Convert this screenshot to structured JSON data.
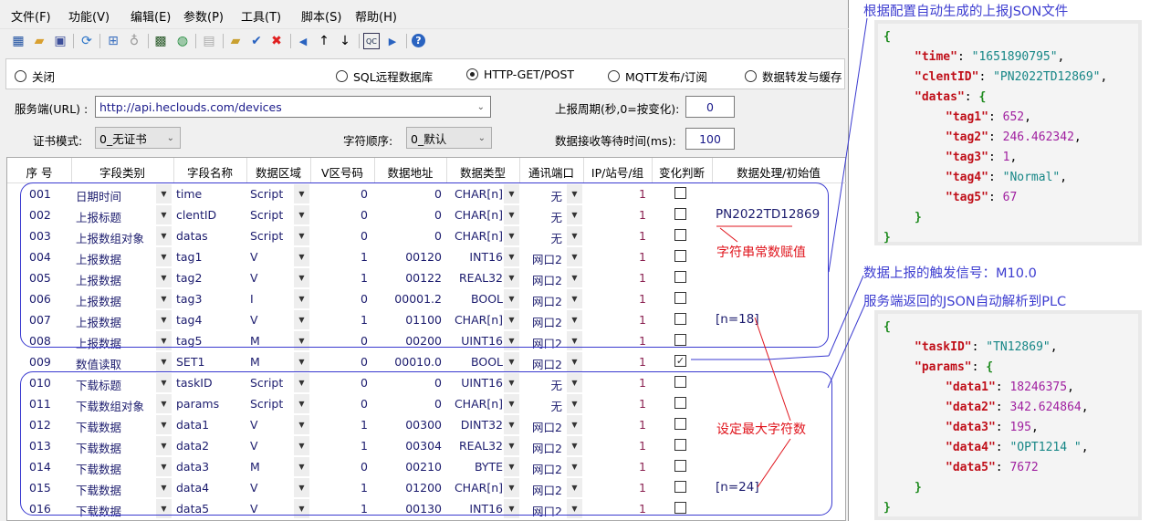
{
  "menu": [
    "文件(F)",
    "功能(V)",
    "编辑(E)",
    "参数(P)",
    "工具(T)",
    "脚本(S)",
    "帮助(H)"
  ],
  "toolbar_icons": [
    "tree-icon",
    "open-folder-icon",
    "save-icon",
    "refresh-icon",
    "network-icon",
    "plug-icon",
    "monitor-icon",
    "globe-device-icon",
    "table-icon",
    "new-folder-icon",
    "check-icon",
    "delete-icon",
    "left-arrow-icon",
    "up-arrow-icon",
    "down-arrow-icon",
    "qc-icon",
    "right-arrow-icon",
    "help-icon"
  ],
  "modes": {
    "off": "关闭",
    "sql": "SQL远程数据库",
    "http": "HTTP-GET/POST",
    "mqtt": "MQTT发布/订阅",
    "forward": "数据转发与缓存",
    "selected": "http"
  },
  "settings": {
    "url_label": "服务端(URL) :",
    "url": "http://api.heclouds.com/devices",
    "period_label": "上报周期(秒,0=按变化):",
    "period": "0",
    "cert_label": "证书模式:",
    "cert": "0_无证书",
    "order_label": "字符顺序:",
    "order": "0_默认",
    "wait_label": "数据接收等待时间(ms):",
    "wait": "100"
  },
  "columns": [
    "序 号",
    "字段类别",
    "字段名称",
    "数据区域",
    "V区号码",
    "数据地址",
    "数据类型",
    "通讯端口",
    "IP/站号/组",
    "变化判断",
    "数据处理/初始值"
  ],
  "rows": [
    {
      "no": "001",
      "cat": "日期时间",
      "name": "time",
      "area": "Script",
      "v": "0",
      "addr": "0",
      "type": "CHAR[n]",
      "port": "无",
      "ip": "1",
      "chg": false,
      "proc": ""
    },
    {
      "no": "002",
      "cat": "上报标题",
      "name": "clentID",
      "area": "Script",
      "v": "0",
      "addr": "0",
      "type": "CHAR[n]",
      "port": "无",
      "ip": "1",
      "chg": false,
      "proc": "PN2022TD12869"
    },
    {
      "no": "003",
      "cat": "上报数组对象",
      "name": "datas",
      "area": "Script",
      "v": "0",
      "addr": "0",
      "type": "CHAR[n]",
      "port": "无",
      "ip": "1",
      "chg": false,
      "proc": ""
    },
    {
      "no": "004",
      "cat": "上报数据",
      "name": "tag1",
      "area": "V",
      "v": "1",
      "addr": "00120",
      "type": "INT16",
      "port": "网口2",
      "ip": "1",
      "chg": false,
      "proc": ""
    },
    {
      "no": "005",
      "cat": "上报数据",
      "name": "tag2",
      "area": "V",
      "v": "1",
      "addr": "00122",
      "type": "REAL32",
      "port": "网口2",
      "ip": "1",
      "chg": false,
      "proc": ""
    },
    {
      "no": "006",
      "cat": "上报数据",
      "name": "tag3",
      "area": "I",
      "v": "0",
      "addr": "00001.2",
      "type": "BOOL",
      "port": "网口2",
      "ip": "1",
      "chg": false,
      "proc": ""
    },
    {
      "no": "007",
      "cat": "上报数据",
      "name": "tag4",
      "area": "V",
      "v": "1",
      "addr": "01100",
      "type": "CHAR[n]",
      "port": "网口2",
      "ip": "1",
      "chg": false,
      "proc": "[n=18]"
    },
    {
      "no": "008",
      "cat": "上报数据",
      "name": "tag5",
      "area": "M",
      "v": "0",
      "addr": "00200",
      "type": "UINT16",
      "port": "网口2",
      "ip": "1",
      "chg": false,
      "proc": ""
    },
    {
      "no": "009",
      "cat": "数值读取",
      "name": "SET1",
      "area": "M",
      "v": "0",
      "addr": "00010.0",
      "type": "BOOL",
      "port": "网口2",
      "ip": "1",
      "chg": true,
      "proc": ""
    },
    {
      "no": "010",
      "cat": "下载标题",
      "name": "taskID",
      "area": "Script",
      "v": "0",
      "addr": "0",
      "type": "UINT16",
      "port": "无",
      "ip": "1",
      "chg": false,
      "proc": ""
    },
    {
      "no": "011",
      "cat": "下载数组对象",
      "name": "params",
      "area": "Script",
      "v": "0",
      "addr": "0",
      "type": "CHAR[n]",
      "port": "无",
      "ip": "1",
      "chg": false,
      "proc": ""
    },
    {
      "no": "012",
      "cat": "下载数据",
      "name": "data1",
      "area": "V",
      "v": "1",
      "addr": "00300",
      "type": "DINT32",
      "port": "网口2",
      "ip": "1",
      "chg": false,
      "proc": ""
    },
    {
      "no": "013",
      "cat": "下载数据",
      "name": "data2",
      "area": "V",
      "v": "1",
      "addr": "00304",
      "type": "REAL32",
      "port": "网口2",
      "ip": "1",
      "chg": false,
      "proc": ""
    },
    {
      "no": "014",
      "cat": "下载数据",
      "name": "data3",
      "area": "M",
      "v": "0",
      "addr": "00210",
      "type": "BYTE",
      "port": "网口2",
      "ip": "1",
      "chg": false,
      "proc": ""
    },
    {
      "no": "015",
      "cat": "下载数据",
      "name": "data4",
      "area": "V",
      "v": "1",
      "addr": "01200",
      "type": "CHAR[n]",
      "port": "网口2",
      "ip": "1",
      "chg": false,
      "proc": "[n=24]"
    },
    {
      "no": "016",
      "cat": "下载数据",
      "name": "data5",
      "area": "V",
      "v": "1",
      "addr": "00130",
      "type": "INT16",
      "port": "网口2",
      "ip": "1",
      "chg": false,
      "proc": ""
    }
  ],
  "annotations": {
    "const_assign": "字符串常数赋值",
    "max_chars": "设定最大字符数",
    "upload_title": "根据配置自动生成的上报JSON文件",
    "trigger": "数据上报的触发信号：M10.0",
    "return_title": "服务端返回的JSON自动解析到PLC"
  },
  "upload_json": [
    {
      "indent": 0,
      "text": "{",
      "kind": "b"
    },
    {
      "indent": 1,
      "key": "time",
      "val": "\"1651890795\"",
      "vk": "s",
      "comma": true
    },
    {
      "indent": 1,
      "key": "clentID",
      "val": "\"PN2022TD12869\"",
      "vk": "s",
      "comma": true
    },
    {
      "indent": 1,
      "key": "datas",
      "val": "{",
      "vk": "b",
      "comma": false
    },
    {
      "indent": 2,
      "key": "tag1",
      "val": "652",
      "vk": "n",
      "comma": true
    },
    {
      "indent": 2,
      "key": "tag2",
      "val": "246.462342",
      "vk": "n",
      "comma": true
    },
    {
      "indent": 2,
      "key": "tag3",
      "val": "1",
      "vk": "n",
      "comma": true
    },
    {
      "indent": 2,
      "key": "tag4",
      "val": "\"Normal\"",
      "vk": "s",
      "comma": true
    },
    {
      "indent": 2,
      "key": "tag5",
      "val": "67",
      "vk": "n",
      "comma": false
    },
    {
      "indent": 1,
      "text": "}",
      "kind": "b"
    },
    {
      "indent": 0,
      "text": "}",
      "kind": "b"
    }
  ],
  "return_json": [
    {
      "indent": 0,
      "text": "{",
      "kind": "b"
    },
    {
      "indent": 1,
      "key": "taskID",
      "val": "\"TN12869\"",
      "vk": "s",
      "comma": true
    },
    {
      "indent": 1,
      "key": "params",
      "val": "{",
      "vk": "b",
      "comma": false
    },
    {
      "indent": 2,
      "key": "data1",
      "val": "18246375",
      "vk": "n",
      "comma": true
    },
    {
      "indent": 2,
      "key": "data2",
      "val": "342.624864",
      "vk": "n",
      "comma": true
    },
    {
      "indent": 2,
      "key": "data3",
      "val": "195",
      "vk": "n",
      "comma": true
    },
    {
      "indent": 2,
      "key": "data4",
      "val": "\"OPT1214 \"",
      "vk": "s",
      "comma": true
    },
    {
      "indent": 2,
      "key": "data5",
      "val": "7672",
      "vk": "n",
      "comma": false
    },
    {
      "indent": 1,
      "text": "}",
      "kind": "b"
    },
    {
      "indent": 0,
      "text": "}",
      "kind": "b"
    }
  ],
  "colors": {
    "annotation_blue": "#3a3ad0",
    "annotation_red": "#e0141c",
    "cell_text": "#1c1c6e",
    "json_key": "#c0101a",
    "json_string": "#168686",
    "json_number": "#a020a0"
  }
}
